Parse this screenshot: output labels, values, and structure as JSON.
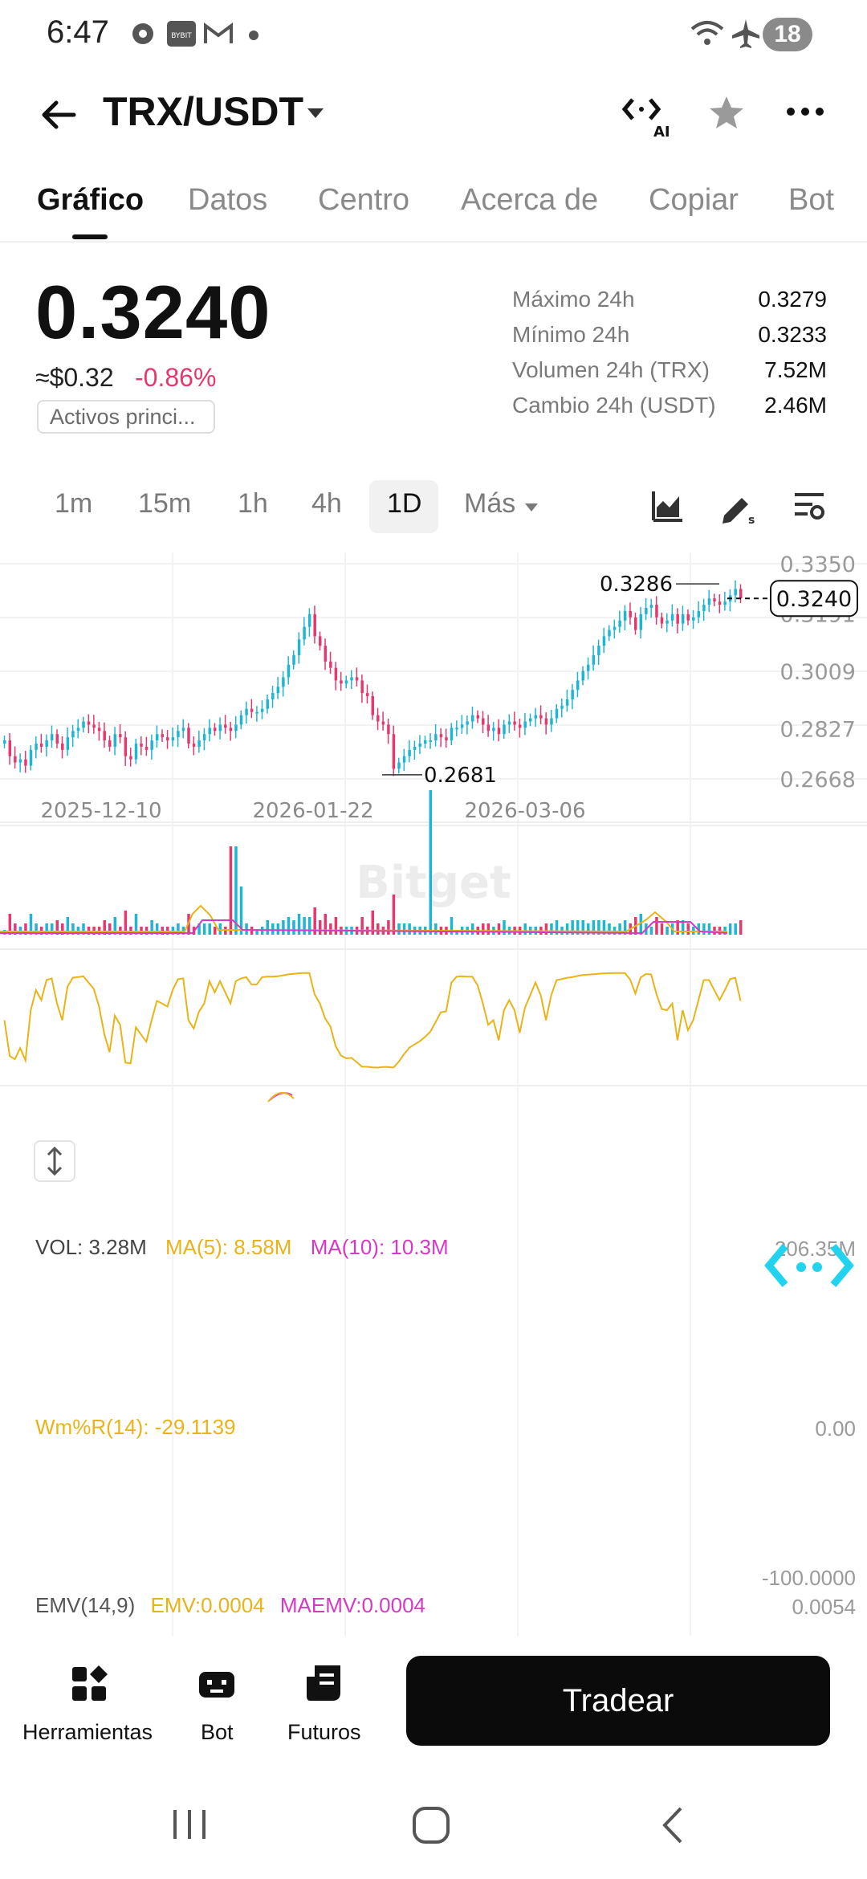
{
  "status_bar": {
    "time": "6:47",
    "battery": "18",
    "icons": [
      "settings-gear-icon",
      "bybit-app-icon",
      "gmail-icon",
      "dot-icon",
      "wifi-icon",
      "airplane-icon"
    ]
  },
  "header": {
    "title": "TRX/USDT",
    "icons": [
      "back-arrow-icon",
      "dropdown-caret-icon",
      "ai-icon",
      "star-icon",
      "more-icon"
    ]
  },
  "tabs": [
    "Gráfico",
    "Datos",
    "Centro",
    "Acerca de",
    "Copiar",
    "Bot"
  ],
  "price": {
    "last": "0.3240",
    "usd": "≈$0.32",
    "change": "-0.86%",
    "tag": "Activos princi..."
  },
  "stats": [
    {
      "label": "Máximo 24h",
      "value": "0.3279"
    },
    {
      "label": "Mínimo 24h",
      "value": "0.3233"
    },
    {
      "label": "Volumen 24h (TRX)",
      "value": "7.52M"
    },
    {
      "label": "Cambio 24h (USDT)",
      "value": "2.46M"
    }
  ],
  "intervals": [
    "1m",
    "15m",
    "1h",
    "4h",
    "1D",
    "Más"
  ],
  "active_interval": "1D",
  "chart_data": {
    "type": "candlestick",
    "watermark": "Bitget",
    "price_axis": [
      "0.3350",
      "0.3191",
      "0.3009",
      "0.2827",
      "0.2668"
    ],
    "price_range": [
      0.2668,
      0.335
    ],
    "date_axis": [
      "2025-12-10",
      "2026-01-22",
      "2026-03-06"
    ],
    "current_price": "0.3240",
    "high_marker": "0.3286",
    "low_marker": "0.2681",
    "closes": [
      0.279,
      0.274,
      0.272,
      0.273,
      0.271,
      0.276,
      0.278,
      0.277,
      0.279,
      0.281,
      0.278,
      0.276,
      0.28,
      0.282,
      0.283,
      0.285,
      0.284,
      0.283,
      0.282,
      0.279,
      0.277,
      0.281,
      0.28,
      0.274,
      0.273,
      0.278,
      0.277,
      0.276,
      0.279,
      0.281,
      0.28,
      0.279,
      0.28,
      0.282,
      0.283,
      0.278,
      0.277,
      0.279,
      0.281,
      0.283,
      0.282,
      0.284,
      0.283,
      0.282,
      0.284,
      0.287,
      0.289,
      0.288,
      0.288,
      0.289,
      0.292,
      0.294,
      0.296,
      0.299,
      0.303,
      0.306,
      0.311,
      0.315,
      0.319,
      0.312,
      0.309,
      0.304,
      0.302,
      0.298,
      0.297,
      0.298,
      0.299,
      0.298,
      0.294,
      0.293,
      0.287,
      0.285,
      0.284,
      0.281,
      0.27,
      0.272,
      0.274,
      0.276,
      0.277,
      0.278,
      0.279,
      0.279,
      0.281,
      0.28,
      0.279,
      0.283,
      0.283,
      0.284,
      0.285,
      0.287,
      0.286,
      0.284,
      0.282,
      0.283,
      0.281,
      0.284,
      0.285,
      0.284,
      0.283,
      0.285,
      0.286,
      0.287,
      0.286,
      0.284,
      0.286,
      0.289,
      0.29,
      0.292,
      0.295,
      0.298,
      0.301,
      0.303,
      0.306,
      0.309,
      0.312,
      0.314,
      0.315,
      0.317,
      0.32,
      0.318,
      0.314,
      0.319,
      0.321,
      0.322,
      0.318,
      0.316,
      0.317,
      0.319,
      0.316,
      0.319,
      0.317,
      0.318,
      0.32,
      0.322,
      0.324,
      0.323,
      0.322,
      0.323,
      0.325,
      0.327,
      0.324
    ],
    "volume": {
      "label": "VOL: 3.28M",
      "ma5": "MA(5): 8.58M",
      "ma10": "MA(10): 10.3M",
      "axis_label": "206.35M"
    },
    "williams_r": {
      "label": "Wm%R(14): -29.1139",
      "axis": [
        "0.00",
        "-100.0000"
      ]
    },
    "emv": {
      "label": "EMV(14,9)",
      "emv": "EMV:0.0004",
      "maemv": "MAEMV:0.0004",
      "axis": "0.0054"
    },
    "colors": {
      "up": "#1fb6d1",
      "down": "#e5396e",
      "ma5": "#e8b418",
      "ma10": "#d63ac4",
      "wr": "#e8b418"
    }
  },
  "bottom_bar": {
    "tools": "Herramientas",
    "bot": "Bot",
    "futures": "Futuros",
    "trade": "Tradear"
  }
}
